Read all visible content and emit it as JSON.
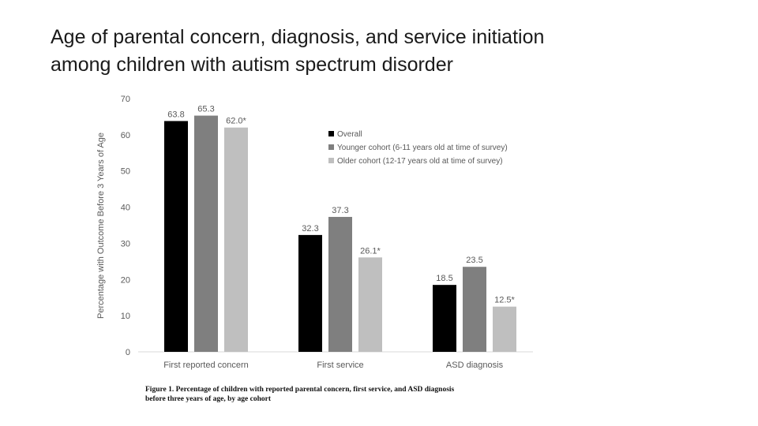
{
  "slide": {
    "title_line1": "Age of parental concern, diagnosis, and service initiation",
    "title_line2": "among children with autism spectrum disorder"
  },
  "figure": {
    "caption_line1": "Figure 1. Percentage of children with reported parental concern, first service, and ASD diagnosis",
    "caption_line2": "before three years of age, by age cohort"
  },
  "chart_data": {
    "type": "bar",
    "ylabel": "Percentage with Outcome Before 3 Years of Age",
    "xlabel": "",
    "ylim": [
      0,
      70
    ],
    "yticks": [
      0,
      10,
      20,
      30,
      40,
      50,
      60,
      70
    ],
    "grid": false,
    "legend_position": "top-right",
    "categories": [
      "First reported concern",
      "First service",
      "ASD diagnosis"
    ],
    "series": [
      {
        "name": "Overall",
        "color": "#000000",
        "values": [
          63.8,
          32.3,
          18.5
        ],
        "labels": [
          "63.8",
          "32.3",
          "18.5"
        ]
      },
      {
        "name": "Younger cohort (6-11 years old at time of survey)",
        "color": "#7f7f7f",
        "values": [
          65.3,
          37.3,
          23.5
        ],
        "labels": [
          "65.3",
          "37.3",
          "23.5"
        ]
      },
      {
        "name": "Older cohort (12-17 years old at time of survey)",
        "color": "#bfbfbf",
        "values": [
          62.0,
          26.1,
          12.5
        ],
        "labels": [
          "62.0*",
          "26.1*",
          "12.5*"
        ]
      }
    ]
  }
}
